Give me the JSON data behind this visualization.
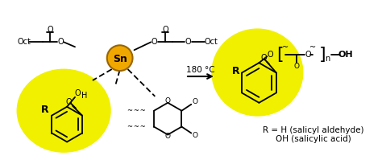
{
  "bg_color": "#ffffff",
  "yellow_color": "#f0f000",
  "sn_color": "#f0a800",
  "sn_text": "Sn",
  "arrow_temp": "180 °C",
  "label1": "R = H (salicyl aldehyde)",
  "label2": "OH (salicylic acid)",
  "oct_label": "Oct",
  "figsize": [
    4.74,
    1.94
  ],
  "dpi": 100
}
